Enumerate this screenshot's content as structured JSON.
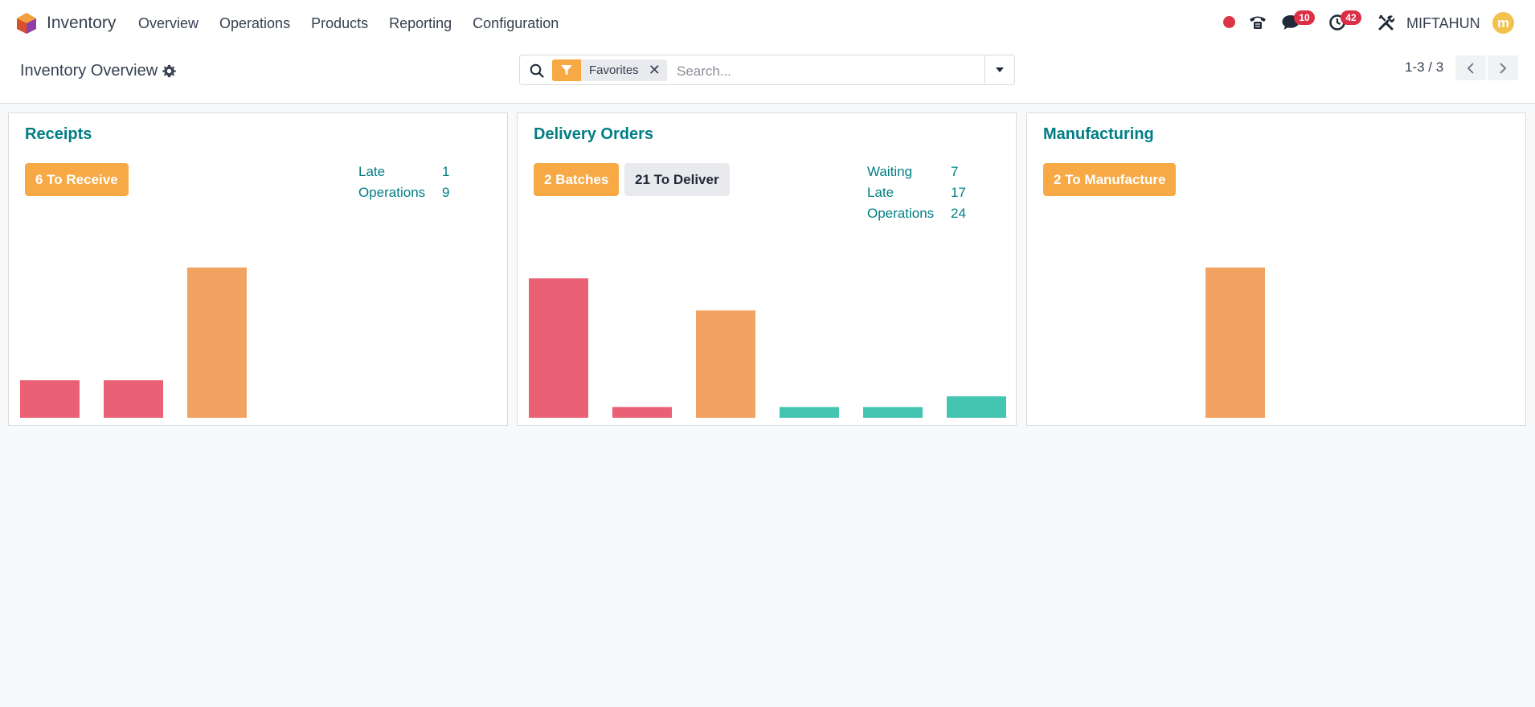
{
  "navbar": {
    "app_name": "Inventory",
    "menu": [
      "Overview",
      "Operations",
      "Products",
      "Reporting",
      "Configuration"
    ],
    "chat_badge": "10",
    "activity_badge": "42",
    "username": "MIFTAHUN",
    "avatar_letter": "m"
  },
  "control_panel": {
    "title": "Inventory Overview",
    "facet_label": "Favorites",
    "facet_remove": "✕",
    "search_placeholder": "Search...",
    "pager_value": "1-3 / 3"
  },
  "cards": [
    {
      "title": "Receipts",
      "buttons": [
        {
          "label": "6 To Receive",
          "style": "primary"
        }
      ],
      "stats": [
        {
          "label": "Late",
          "value": "1"
        },
        {
          "label": "Operations",
          "value": "9"
        }
      ]
    },
    {
      "title": "Delivery Orders",
      "buttons": [
        {
          "label": "2 Batches",
          "style": "primary"
        },
        {
          "label": "21 To Deliver",
          "style": "secondary"
        }
      ],
      "stats": [
        {
          "label": "Waiting",
          "value": "7"
        },
        {
          "label": "Late",
          "value": "17"
        },
        {
          "label": "Operations",
          "value": "24"
        }
      ]
    },
    {
      "title": "Manufacturing",
      "buttons": [
        {
          "label": "2 To Manufacture",
          "style": "primary"
        }
      ],
      "stats": []
    }
  ],
  "chart_data": [
    {
      "type": "bar",
      "categories": [
        "",
        "",
        "",
        "",
        "",
        ""
      ],
      "values": [
        2,
        2,
        8,
        0,
        0,
        0
      ],
      "colors": [
        "#ea6175",
        "#ea6175",
        "#f2a361",
        "#43c5b1",
        "#43c5b1",
        "#43c5b1"
      ],
      "title": "",
      "xlabel": "",
      "ylabel": "",
      "ylim": [
        0,
        8
      ]
    },
    {
      "type": "bar",
      "categories": [
        "",
        "",
        "",
        "",
        "",
        ""
      ],
      "values": [
        13,
        1,
        10,
        1,
        1,
        2
      ],
      "colors": [
        "#ea6175",
        "#ea6175",
        "#f2a361",
        "#43c5b1",
        "#43c5b1",
        "#43c5b1"
      ],
      "title": "",
      "xlabel": "",
      "ylabel": "",
      "ylim": [
        0,
        14
      ]
    },
    {
      "type": "bar",
      "categories": [
        "",
        "",
        "",
        "",
        "",
        ""
      ],
      "values": [
        0,
        0,
        2,
        0,
        0,
        0
      ],
      "colors": [
        "#ea6175",
        "#ea6175",
        "#f2a361",
        "#43c5b1",
        "#43c5b1",
        "#43c5b1"
      ],
      "title": "",
      "xlabel": "",
      "ylabel": "",
      "ylim": [
        0,
        2
      ]
    }
  ],
  "colors": {
    "accent": "#017e84",
    "primary_button": "#f7a945",
    "late_bar": "#ea6175",
    "today_bar": "#f2a361",
    "future_bar": "#43c5b1",
    "badge": "#dc2f45"
  }
}
